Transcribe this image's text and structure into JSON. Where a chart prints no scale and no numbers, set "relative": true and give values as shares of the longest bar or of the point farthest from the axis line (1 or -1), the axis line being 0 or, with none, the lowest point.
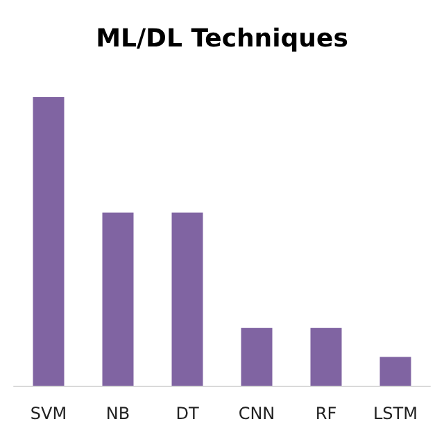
{
  "chart_data": {
    "type": "bar",
    "title": "ML/DL Techniques",
    "categories": [
      "SVM",
      "NB",
      "DT",
      "CNN",
      "RF",
      "LSTM"
    ],
    "values": [
      1,
      0.6,
      0.6,
      0.2,
      0.2,
      0.1
    ],
    "color": "#8064a2",
    "relative": true
  }
}
